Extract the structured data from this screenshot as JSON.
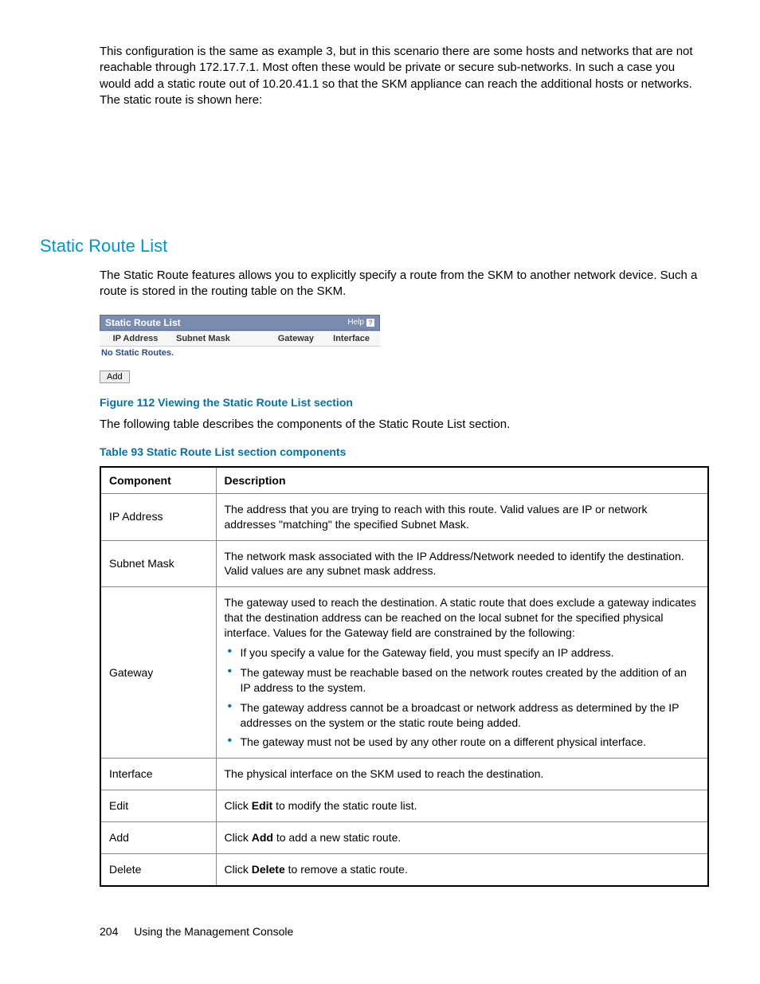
{
  "intro": "This configuration is the same as example 3, but in this scenario there are some hosts and networks that are not reachable through 172.17.7.1. Most often these would be private or secure sub-networks. In such a case you would add a static route out of 10.20.41.1 so that the SKM appliance can reach the additional hosts or networks. The static route is shown here:",
  "section_heading": "Static Route List",
  "section_para": "The Static Route features allows you to explicitly specify a route from the SKM to another network device. Such a route is stored in the routing table on the SKM.",
  "panel": {
    "title": "Static Route List",
    "help": "Help",
    "columns": {
      "ip": "IP Address",
      "mask": "Subnet Mask",
      "gw": "Gateway",
      "iface": "Interface"
    },
    "empty_message": "No Static Routes.",
    "add_button": "Add"
  },
  "figure_caption": "Figure 112 Viewing the Static Route List section",
  "after_figure": "The following table describes the components of the Static Route List section.",
  "table_caption": "Table 93 Static Route List section components",
  "table": {
    "headers": {
      "component": "Component",
      "description": "Description"
    },
    "rows": {
      "ip": {
        "name": "IP Address",
        "desc": "The address that you are trying to reach with this route. Valid values are IP or network addresses \"matching\" the specified Subnet Mask."
      },
      "mask": {
        "name": "Subnet Mask",
        "desc": "The network mask associated with the IP Address/Network needed to identify the destination. Valid values are any subnet mask address."
      },
      "gateway": {
        "name": "Gateway",
        "intro": "The gateway used to reach the destination. A static route that does exclude a gateway indicates that the destination address can be reached on the local subnet for the specified physical interface. Values for the Gateway field are constrained by the following:",
        "b1": "If you specify a value for the Gateway field, you must specify an IP address.",
        "b2": "The gateway must be reachable based on the network routes created by the addition of an IP address to the system.",
        "b3": "The gateway address cannot be a broadcast or network address as determined by the IP addresses on the system or the static route being added.",
        "b4": "The gateway must not be used by any other route on a different physical interface."
      },
      "iface": {
        "name": "Interface",
        "desc": "The physical interface on the SKM used to reach the destination."
      },
      "edit": {
        "name": "Edit",
        "pre": "Click ",
        "bold": "Edit",
        "post": " to modify the static route list."
      },
      "add": {
        "name": "Add",
        "pre": "Click ",
        "bold": "Add",
        "post": " to add a new static route."
      },
      "delete": {
        "name": "Delete",
        "pre": "Click ",
        "bold": "Delete",
        "post": " to remove a static route."
      }
    }
  },
  "footer": {
    "page": "204",
    "title": "Using the Management Console"
  }
}
